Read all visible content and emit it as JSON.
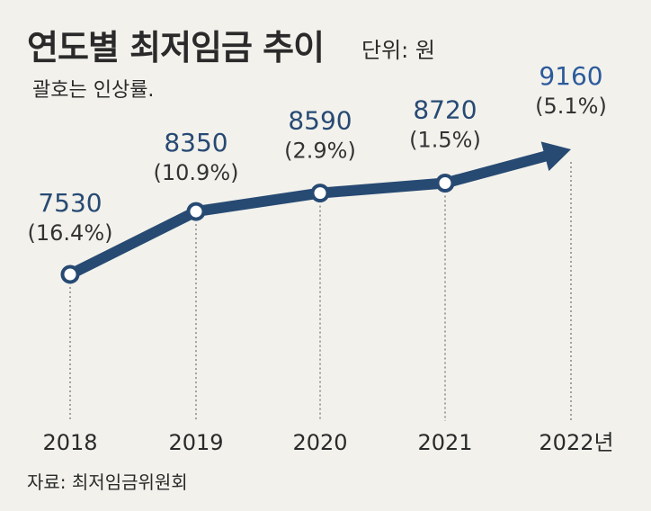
{
  "header": {
    "title": "연도별 최저임금 추이",
    "unit": "단위: 원",
    "note": "괄호는 인상률."
  },
  "footer": {
    "source": "자료: 최저임금위원회"
  },
  "colors": {
    "line": "#274a73",
    "marker_fill": "#ffffff",
    "last_value": "#2c5a9b",
    "background": "#f2f1ec"
  },
  "chart_data": {
    "type": "line",
    "title": "연도별 최저임금 추이",
    "unit": "단위: 원",
    "categories": [
      "2018",
      "2019",
      "2020",
      "2021",
      "2022년"
    ],
    "values": [
      7530,
      8350,
      8590,
      8720,
      9160
    ],
    "value_labels": [
      "7530",
      "8350",
      "8590",
      "8720",
      "9160"
    ],
    "increase_rate_labels": [
      "(16.4%)",
      "(10.9%)",
      "(2.9%)",
      "(1.5%)",
      "(5.1%)"
    ],
    "last_point": "arrow",
    "grid": false,
    "legend": "none"
  }
}
